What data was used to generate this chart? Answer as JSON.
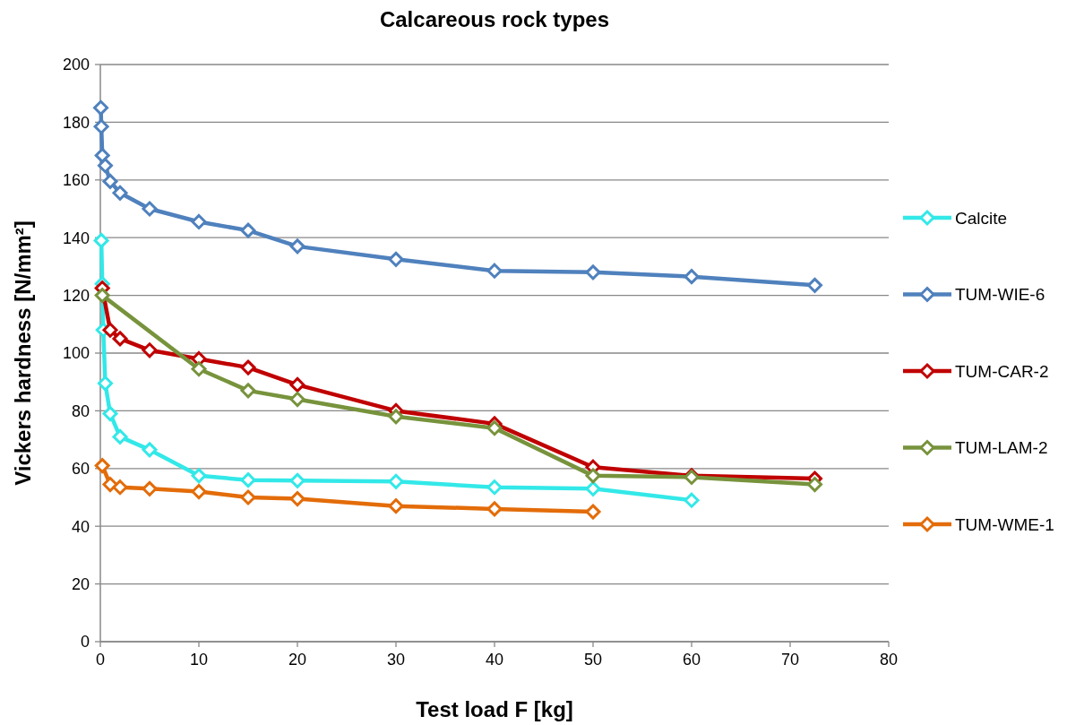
{
  "chart_data": {
    "type": "line",
    "title": "Calcareous rock types",
    "xlabel": "Test load F [kg]",
    "ylabel": "Vickers hardness [N/mm²]",
    "xlim": [
      0,
      80
    ],
    "xticks": [
      0,
      10,
      20,
      30,
      40,
      50,
      60,
      70,
      80
    ],
    "ylim": [
      0,
      200
    ],
    "yticks": [
      0,
      20,
      40,
      60,
      80,
      100,
      120,
      140,
      160,
      180,
      200
    ],
    "grid": "y",
    "legend": "right",
    "marker": "diamond",
    "line_style": "solid",
    "series": [
      {
        "name": "Calcite",
        "color": "#33e8e8",
        "x": [
          0.1,
          0.2,
          0.3,
          0.5,
          1,
          2,
          5,
          10,
          15,
          20,
          30,
          40,
          50,
          60
        ],
        "values": [
          139,
          124,
          108,
          89.5,
          79,
          71,
          66.5,
          57.5,
          56,
          55.8,
          55.5,
          53.5,
          53,
          49
        ]
      },
      {
        "name": "TUM-WIE-6",
        "color": "#4f81bd",
        "x": [
          0.05,
          0.1,
          0.2,
          0.5,
          1,
          2,
          5,
          10,
          15,
          20,
          30,
          40,
          50,
          60,
          72.5
        ],
        "values": [
          185,
          178.5,
          168.5,
          165,
          159.5,
          155.5,
          150,
          145.5,
          142.5,
          137,
          132.5,
          128.5,
          128,
          126.5,
          123.5
        ]
      },
      {
        "name": "TUM-CAR-2",
        "color": "#c00000",
        "x": [
          0.2,
          1,
          2,
          5,
          10,
          15,
          20,
          30,
          40,
          50,
          60,
          72.5
        ],
        "values": [
          122.5,
          108,
          105,
          101,
          98,
          95,
          89,
          80,
          75.5,
          60.5,
          57.5,
          56.5
        ]
      },
      {
        "name": "TUM-LAM-2",
        "color": "#77933c",
        "x": [
          0.2,
          10,
          15,
          20,
          30,
          40,
          50,
          60,
          72.5
        ],
        "values": [
          120,
          94.5,
          87,
          84,
          78,
          74,
          57.5,
          57,
          54.5
        ]
      },
      {
        "name": "TUM-WME-1",
        "color": "#e36c09",
        "x": [
          0.2,
          1,
          2,
          5,
          10,
          15,
          20,
          30,
          40,
          50
        ],
        "values": [
          61,
          54.5,
          53.5,
          53,
          52,
          50,
          49.5,
          47,
          46,
          45
        ]
      }
    ]
  }
}
